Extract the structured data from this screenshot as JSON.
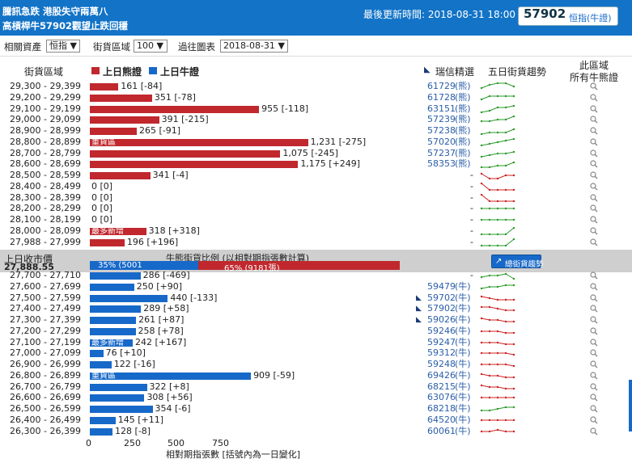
{
  "header": {
    "line1": "騰訊急跌 港股失守兩萬八",
    "line2": "高槓桿牛57902觀望止跌回穩",
    "updated": "最後更新時間: 2018-08-31 18:00",
    "ticker": "57902",
    "ticker_label": "恒指(牛證)"
  },
  "controls": {
    "asset_label": "相關資產",
    "asset_value": "恒指",
    "zone_label": "街貨區域",
    "zone_value": "100",
    "past_label": "過往圖表",
    "past_value": "2018-08-31"
  },
  "columns": {
    "zone": "街貨區域",
    "bear": "上日熊證",
    "bull": "上日牛證",
    "ruixin": "瑞信精選",
    "trend": "五日街貨趨勢",
    "all1": "此區域",
    "all2": "所有牛熊證"
  },
  "colors": {
    "bear": "#c0282e",
    "bull": "#1769c9",
    "trend": "#2a9a2a",
    "trend_down": "#cc2222"
  },
  "bear_rows": [
    {
      "range": "29,300 - 29,399",
      "value": 161,
      "label": "161 [-84]",
      "code": "61729",
      "type": "(熊)",
      "trend": [
        2,
        4,
        5,
        5,
        3
      ]
    },
    {
      "range": "29,200 - 29,299",
      "value": 351,
      "label": "351 [-78]",
      "code": "61728",
      "type": "(熊)",
      "trend": [
        2,
        4,
        4,
        4,
        4
      ]
    },
    {
      "range": "29,100 - 29,199",
      "value": 955,
      "label": "955 [-118]",
      "code": "63151",
      "type": "(熊)",
      "trend": [
        1,
        2,
        4,
        4,
        5
      ]
    },
    {
      "range": "29,000 - 29,099",
      "value": 391,
      "label": "391 [-215]",
      "code": "57239",
      "type": "(熊)",
      "trend": [
        2,
        2,
        3,
        3,
        5
      ]
    },
    {
      "range": "28,900 - 28,999",
      "value": 265,
      "label": "265 [-91]",
      "code": "57238",
      "type": "(熊)",
      "trend": [
        1,
        2,
        2,
        2,
        4
      ]
    },
    {
      "range": "28,800 - 28,899",
      "value": 1231,
      "label": "1,231 [-275]",
      "code": "57020",
      "type": "(熊)",
      "trend": [
        1,
        2,
        3,
        4,
        5
      ],
      "tag": "重貨區"
    },
    {
      "range": "28,700 - 28,799",
      "value": 1075,
      "label": "1,075 [-245]",
      "code": "57237",
      "type": "(熊)",
      "trend": [
        1,
        2,
        3,
        3,
        4
      ]
    },
    {
      "range": "28,600 - 28,699",
      "value": 1175,
      "label": "1,175 [+249]",
      "code": "58353",
      "type": "(熊)",
      "trend": [
        1,
        1,
        2,
        2,
        4
      ]
    },
    {
      "range": "28,500 - 28,599",
      "value": 341,
      "label": "341 [-4]",
      "code": "-",
      "type": "",
      "trend": [
        4,
        1,
        1,
        3,
        3
      ],
      "down": true
    },
    {
      "range": "28,400 - 28,499",
      "value": 0,
      "label": "0 [0]",
      "code": "-",
      "type": "",
      "trend": [
        5,
        1,
        1,
        1,
        1
      ],
      "down": true
    },
    {
      "range": "28,300 - 28,399",
      "value": 0,
      "label": "0 [0]",
      "code": "-",
      "type": "",
      "trend": [
        5,
        1,
        1,
        1,
        1
      ],
      "down": true
    },
    {
      "range": "28,200 - 28,299",
      "value": 0,
      "label": "0 [0]",
      "code": "-",
      "type": "",
      "trend": [
        3,
        3,
        3,
        3,
        3
      ]
    },
    {
      "range": "28,100 - 28,199",
      "value": 0,
      "label": "0 [0]",
      "code": "-",
      "type": "",
      "trend": [
        3,
        3,
        3,
        3,
        3
      ]
    },
    {
      "range": "28,000 - 28,099",
      "value": 318,
      "label": "318 [+318]",
      "code": "-",
      "type": "",
      "trend": [
        1,
        1,
        1,
        1,
        5
      ],
      "tag": "最多新增"
    },
    {
      "range": "27,988 - 27,999",
      "value": 196,
      "label": "196 [+196]",
      "code": "-",
      "type": "",
      "trend": [
        1,
        1,
        1,
        1,
        5
      ]
    }
  ],
  "middle": {
    "close_label": "上日收市價",
    "close_value": "27,888.55",
    "ratio_title": "牛熊街貨比例 (以相對期指張數計算)",
    "bull_text": "35% (5001",
    "bear_text": "65% (9181張)",
    "bull_pct": 35,
    "bear_pct": 65,
    "btn": "總街貨趨勢"
  },
  "bull_rows": [
    {
      "range": "27,700 - 27,710",
      "value": 286,
      "label": "286 [-469]",
      "code": "-",
      "type": "",
      "trend": [
        2,
        3,
        3,
        4,
        1
      ]
    },
    {
      "range": "27,600 - 27,699",
      "value": 250,
      "label": "250 [+90]",
      "code": "59479",
      "type": "(牛)",
      "trend": [
        2,
        3,
        3,
        4,
        4
      ],
      "marker": false
    },
    {
      "range": "27,500 - 27,599",
      "value": 440,
      "label": "440 [-133]",
      "code": "59702",
      "type": "(牛)",
      "trend": [
        4,
        3,
        2,
        2,
        2
      ],
      "marker": true,
      "down": true
    },
    {
      "range": "27,400 - 27,499",
      "value": 289,
      "label": "289 [+58]",
      "code": "57902",
      "type": "(牛)",
      "trend": [
        4,
        4,
        3,
        2,
        2
      ],
      "marker": true,
      "down": true
    },
    {
      "range": "27,300 - 27,399",
      "value": 261,
      "label": "261 [+87]",
      "code": "59026",
      "type": "(牛)",
      "trend": [
        4,
        3,
        3,
        2,
        2
      ],
      "marker": true,
      "down": true
    },
    {
      "range": "27,200 - 27,299",
      "value": 258,
      "label": "258 [+78]",
      "code": "59246",
      "type": "(牛)",
      "trend": [
        3,
        3,
        3,
        2,
        2
      ],
      "down": true
    },
    {
      "range": "27,100 - 27,199",
      "value": 242,
      "label": "242 [+167]",
      "code": "59247",
      "type": "(牛)",
      "trend": [
        3,
        3,
        3,
        2,
        2
      ],
      "tag": "最多新增",
      "down": true
    },
    {
      "range": "27,000 - 27,099",
      "value": 76,
      "label": "76 [+10]",
      "code": "59312",
      "type": "(牛)",
      "trend": [
        3,
        3,
        3,
        3,
        2
      ],
      "down": true
    },
    {
      "range": "26,900 - 26,999",
      "value": 122,
      "label": "122 [-16]",
      "code": "59248",
      "type": "(牛)",
      "trend": [
        3,
        3,
        3,
        3,
        2
      ],
      "down": true
    },
    {
      "range": "26,800 - 26,899",
      "value": 909,
      "label": "909 [-59]",
      "code": "69426",
      "type": "(牛)",
      "trend": [
        4,
        3,
        3,
        2,
        2
      ],
      "tag": "重貨區",
      "down": true
    },
    {
      "range": "26,700 - 26,799",
      "value": 322,
      "label": "322 [+8]",
      "code": "68215",
      "type": "(牛)",
      "trend": [
        4,
        3,
        3,
        2,
        2
      ],
      "down": true
    },
    {
      "range": "26,600 - 26,699",
      "value": 308,
      "label": "308 [+56]",
      "code": "63076",
      "type": "(牛)",
      "trend": [
        3,
        3,
        3,
        3,
        3
      ],
      "down": true
    },
    {
      "range": "26,500 - 26,599",
      "value": 354,
      "label": "354 [-6]",
      "code": "68218",
      "type": "(牛)",
      "trend": [
        2,
        2,
        3,
        4,
        4
      ]
    },
    {
      "range": "26,400 - 26,499",
      "value": 145,
      "label": "145 [+11]",
      "code": "64520",
      "type": "(牛)",
      "trend": [
        3,
        3,
        3,
        3,
        3
      ],
      "down": true
    },
    {
      "range": "26,300 - 26,399",
      "value": 128,
      "label": "128 [-8]",
      "code": "60061",
      "type": "(牛)",
      "trend": [
        3,
        3,
        4,
        3,
        3
      ],
      "down": true
    }
  ],
  "axis": {
    "ticks": [
      "0",
      "250",
      "500",
      "750"
    ],
    "title": "相對期指張數 [括號內為一日變化]"
  }
}
